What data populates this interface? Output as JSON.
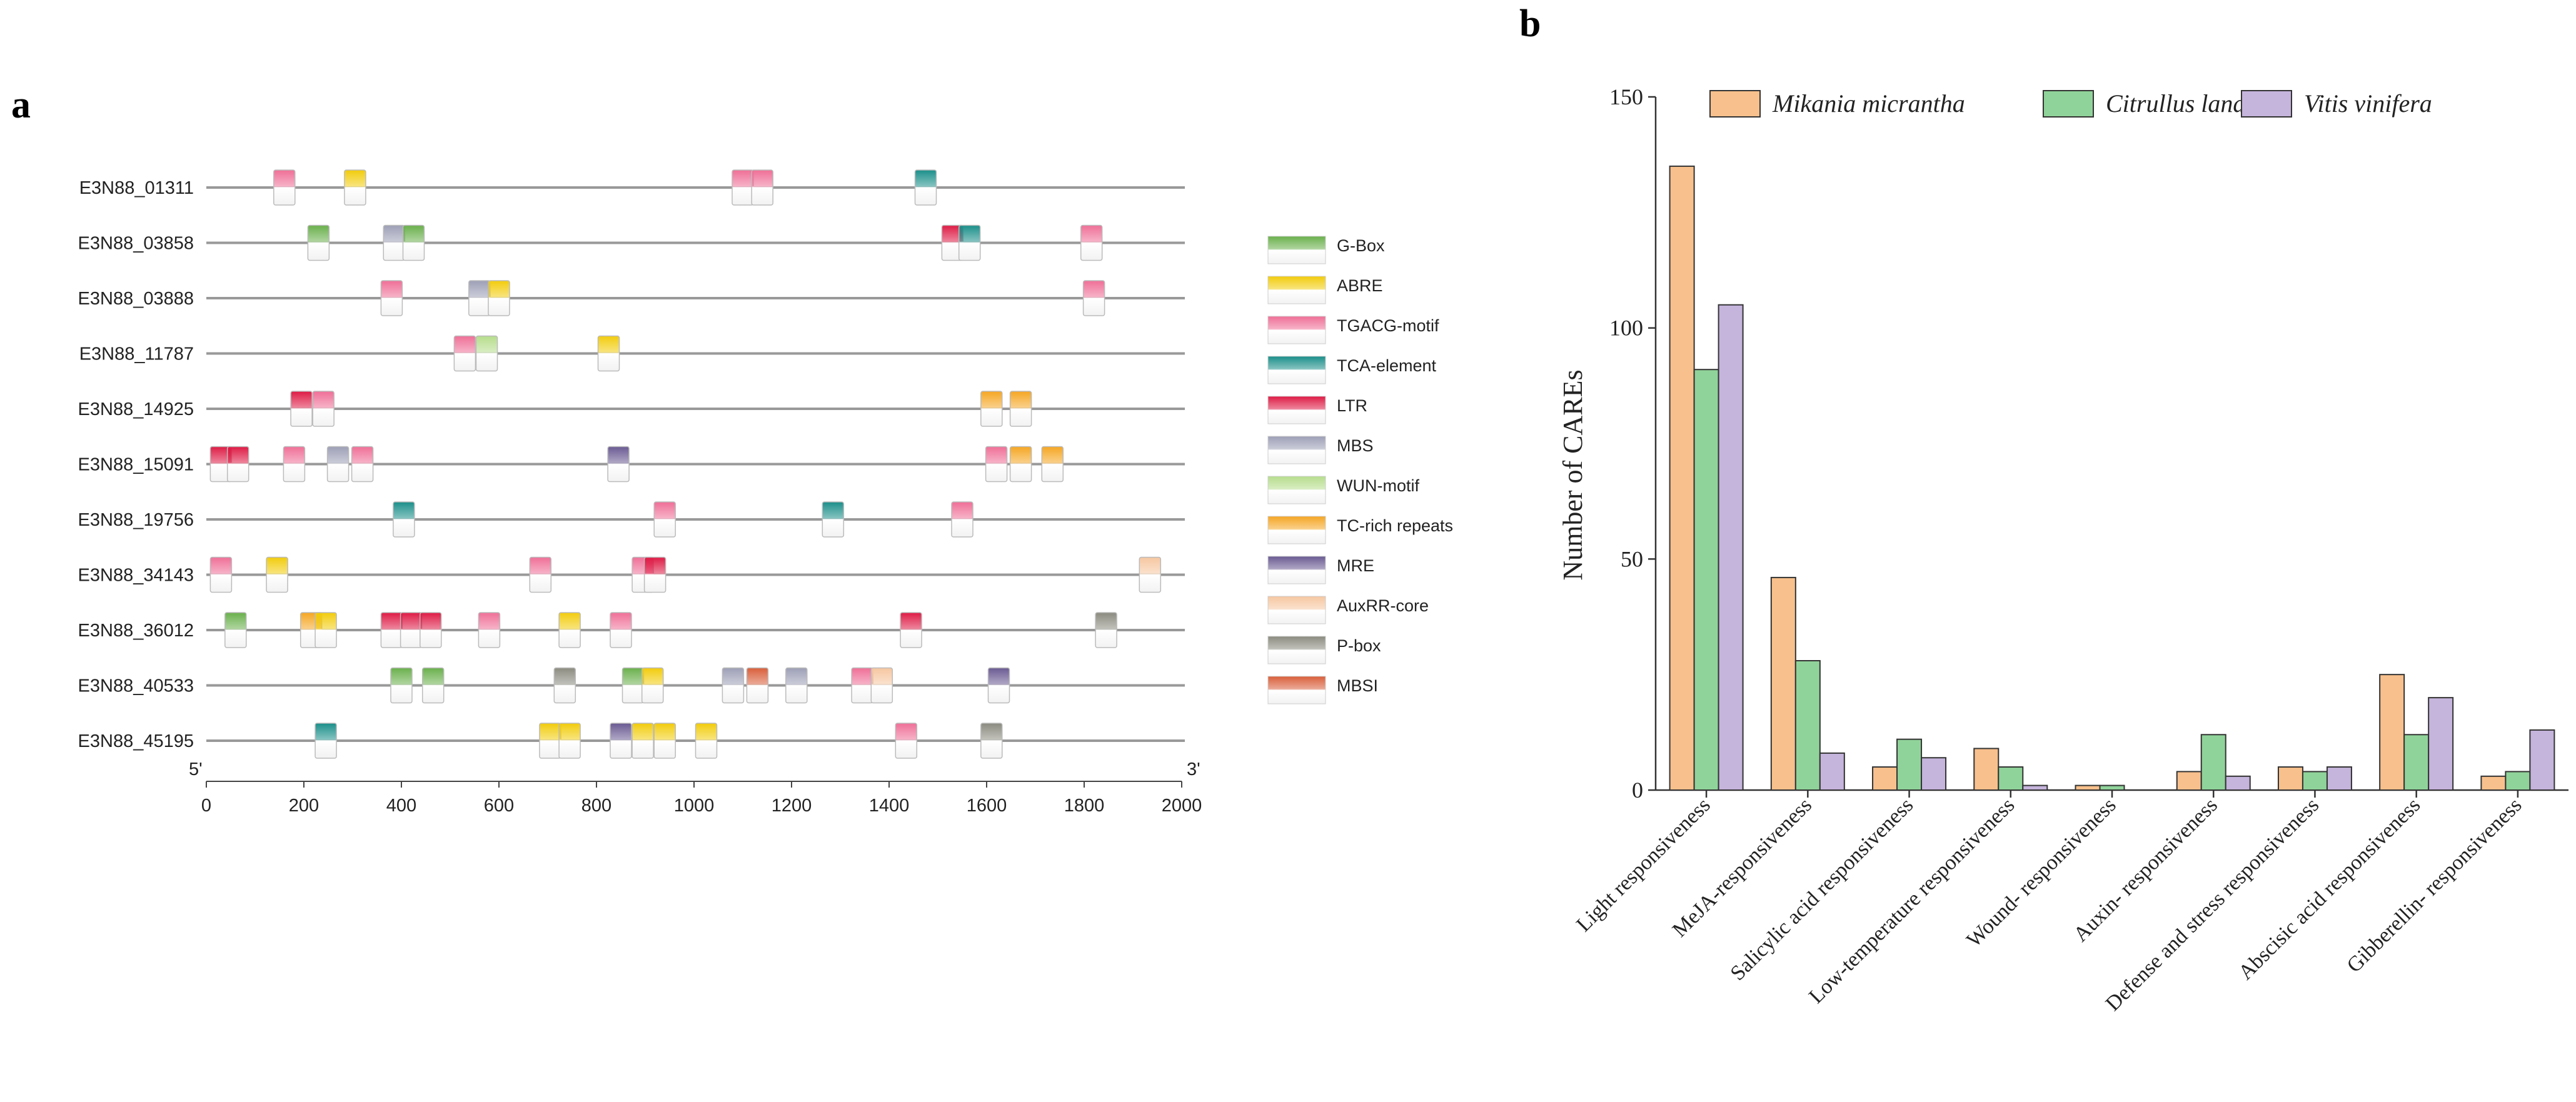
{
  "chart_data": [
    {
      "type": "gene-map",
      "panel": "a",
      "x_start_label": "5'",
      "x_end_label": "3'",
      "xlim": [
        0,
        2000
      ],
      "xticks": [
        0,
        200,
        400,
        600,
        800,
        1000,
        1200,
        1400,
        1600,
        1800,
        2000
      ],
      "legend": [
        {
          "name": "G-Box",
          "color": "#6ab04c"
        },
        {
          "name": "ABRE",
          "color": "#f2cc0c"
        },
        {
          "name": "TGACG-motif",
          "color": "#ef6f97"
        },
        {
          "name": "TCA-element",
          "color": "#1b8f8a"
        },
        {
          "name": "LTR",
          "color": "#de1b45"
        },
        {
          "name": "MBS",
          "color": "#9d9fb6"
        },
        {
          "name": "WUN-motif",
          "color": "#b6dd8c"
        },
        {
          "name": "TC-rich repeats",
          "color": "#f5a623"
        },
        {
          "name": "MRE",
          "color": "#6a5a92"
        },
        {
          "name": "AuxRR-core",
          "color": "#f6c7a1"
        },
        {
          "name": "P-box",
          "color": "#8b8b80"
        },
        {
          "name": "MBSI",
          "color": "#d95f3b"
        }
      ],
      "genes": [
        {
          "name": "E3N88_01311",
          "elements": [
            [
              "TGACG-motif",
              160
            ],
            [
              "ABRE",
              305
            ],
            [
              "TGACG-motif",
              1100
            ],
            [
              "TGACG-motif",
              1140
            ],
            [
              "TCA-element",
              1475
            ]
          ]
        },
        {
          "name": "E3N88_03858",
          "elements": [
            [
              "G-Box",
              230
            ],
            [
              "MBS",
              385
            ],
            [
              "G-Box",
              425
            ],
            [
              "LTR",
              1530
            ],
            [
              "TCA-element",
              1565
            ],
            [
              "TGACG-motif",
              1815
            ]
          ]
        },
        {
          "name": "E3N88_03888",
          "elements": [
            [
              "TGACG-motif",
              380
            ],
            [
              "MBS",
              560
            ],
            [
              "ABRE",
              600
            ],
            [
              "TGACG-motif",
              1820
            ]
          ]
        },
        {
          "name": "E3N88_11787",
          "elements": [
            [
              "TGACG-motif",
              530
            ],
            [
              "WUN-motif",
              575
            ],
            [
              "ABRE",
              825
            ]
          ]
        },
        {
          "name": "E3N88_14925",
          "elements": [
            [
              "LTR",
              195
            ],
            [
              "TGACG-motif",
              240
            ],
            [
              "TC-rich repeats",
              1610
            ],
            [
              "TC-rich repeats",
              1670
            ]
          ]
        },
        {
          "name": "E3N88_15091",
          "elements": [
            [
              "LTR",
              30
            ],
            [
              "LTR",
              65
            ],
            [
              "TGACG-motif",
              180
            ],
            [
              "MBS",
              270
            ],
            [
              "TGACG-motif",
              320
            ],
            [
              "MRE",
              845
            ],
            [
              "TGACG-motif",
              1620
            ],
            [
              "TC-rich repeats",
              1670
            ],
            [
              "TC-rich repeats",
              1735
            ]
          ]
        },
        {
          "name": "E3N88_19756",
          "elements": [
            [
              "TCA-element",
              405
            ],
            [
              "TGACG-motif",
              940
            ],
            [
              "TCA-element",
              1285
            ],
            [
              "TGACG-motif",
              1550
            ]
          ]
        },
        {
          "name": "E3N88_34143",
          "elements": [
            [
              "TGACG-motif",
              30
            ],
            [
              "ABRE",
              145
            ],
            [
              "TGACG-motif",
              685
            ],
            [
              "TGACG-motif",
              895
            ],
            [
              "LTR",
              920
            ],
            [
              "AuxRR-core",
              1935
            ]
          ]
        },
        {
          "name": "E3N88_36012",
          "elements": [
            [
              "G-Box",
              60
            ],
            [
              "TC-rich repeats",
              215
            ],
            [
              "ABRE",
              245
            ],
            [
              "LTR",
              380
            ],
            [
              "LTR",
              420
            ],
            [
              "LTR",
              460
            ],
            [
              "TGACG-motif",
              580
            ],
            [
              "ABRE",
              745
            ],
            [
              "TGACG-motif",
              850
            ],
            [
              "LTR",
              1445
            ],
            [
              "P-box",
              1845
            ]
          ]
        },
        {
          "name": "E3N88_40533",
          "elements": [
            [
              "G-Box",
              400
            ],
            [
              "G-Box",
              465
            ],
            [
              "P-box",
              735
            ],
            [
              "G-Box",
              875
            ],
            [
              "ABRE",
              915
            ],
            [
              "MBS",
              1080
            ],
            [
              "MBSI",
              1130
            ],
            [
              "MBS",
              1210
            ],
            [
              "TGACG-motif",
              1345
            ],
            [
              "AuxRR-core",
              1385
            ],
            [
              "MRE",
              1625
            ]
          ]
        },
        {
          "name": "E3N88_45195",
          "elements": [
            [
              "TCA-element",
              245
            ],
            [
              "ABRE",
              705
            ],
            [
              "ABRE",
              745
            ],
            [
              "MRE",
              850
            ],
            [
              "ABRE",
              895
            ],
            [
              "ABRE",
              940
            ],
            [
              "ABRE",
              1025
            ],
            [
              "TGACG-motif",
              1435
            ],
            [
              "P-box",
              1610
            ]
          ]
        }
      ]
    },
    {
      "type": "bar",
      "panel": "b",
      "ylabel": "Number of CAREs",
      "ylim": [
        0,
        150
      ],
      "yticks": [
        0,
        50,
        100,
        150
      ],
      "categories": [
        "Light  responsiveness",
        "MeJA-responsiveness",
        "Salicylic acid responsiveness",
        "Low-temperature responsiveness",
        "Wound- responsiveness",
        "Auxin- responsiveness",
        "Defense and stress responsiveness",
        "Abscisic acid responsiveness",
        "Gibberellin- responsiveness"
      ],
      "series": [
        {
          "name": "Mikania micrantha",
          "color": "#f8c08c",
          "values": [
            135,
            46,
            5,
            9,
            1,
            4,
            5,
            25,
            3
          ]
        },
        {
          "name": "Citrullus lanatus",
          "color": "#90d39a",
          "values": [
            91,
            28,
            11,
            5,
            1,
            12,
            4,
            12,
            4
          ]
        },
        {
          "name": "Vitis vinifera",
          "color": "#c5b4dc",
          "values": [
            105,
            8,
            7,
            1,
            0,
            3,
            5,
            20,
            13
          ]
        }
      ]
    }
  ]
}
